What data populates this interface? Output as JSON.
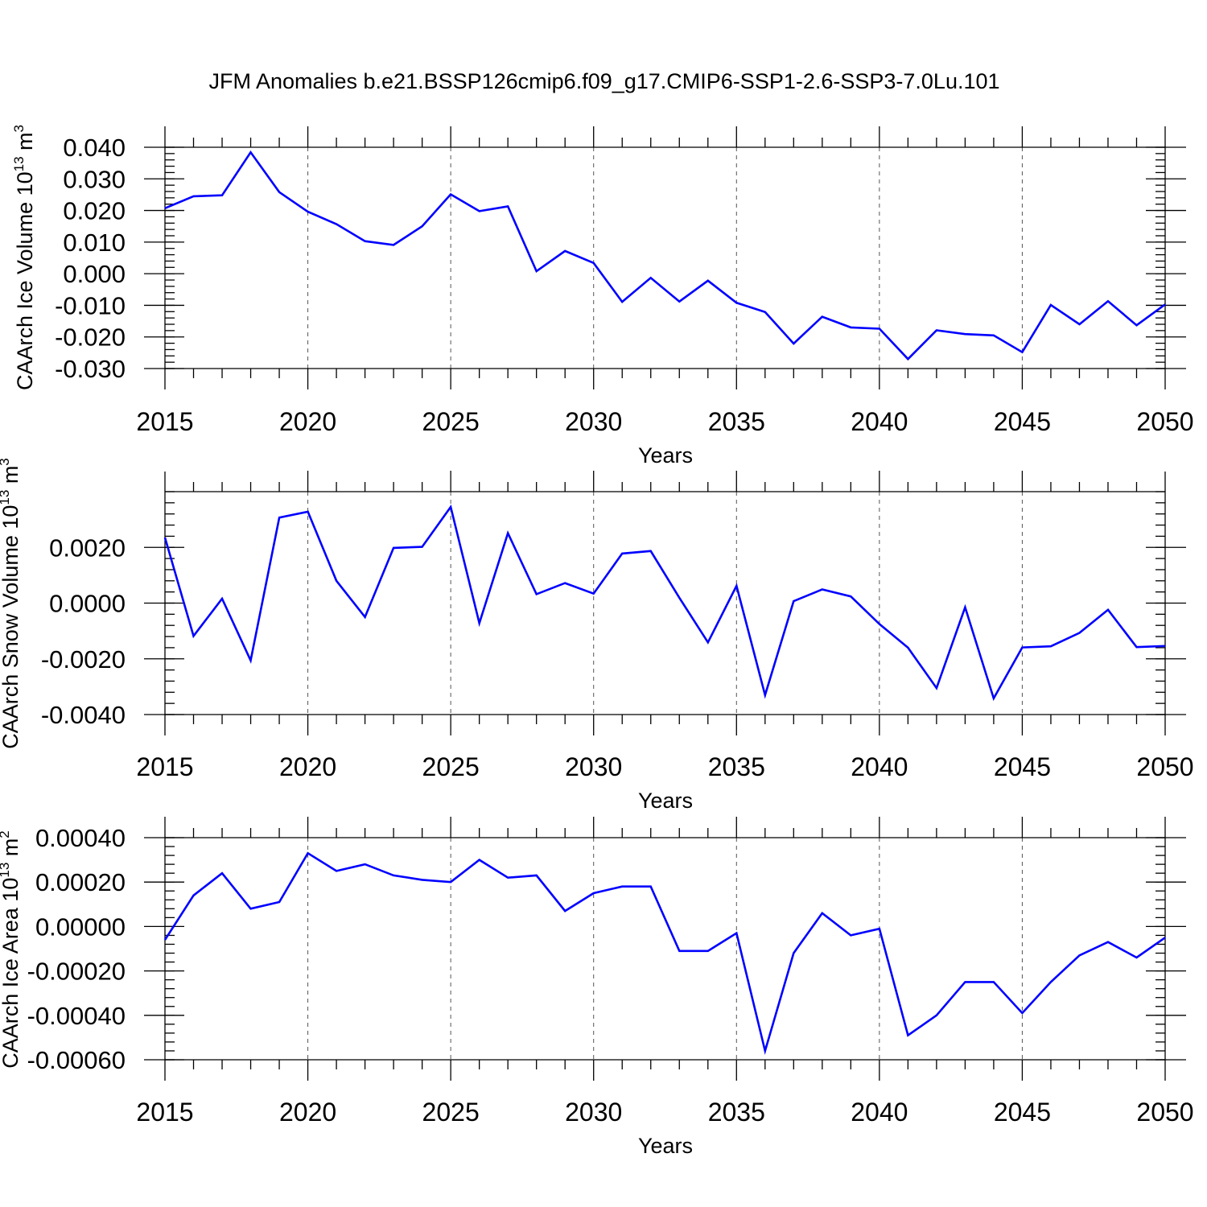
{
  "title": "JFM Anomalies b.e21.BSSP126cmip6.f09_g17.CMIP6-SSP1-2.6-SSP3-7.0Lu.101",
  "colors": {
    "line": "#0000ff",
    "axis": "#000000",
    "grid": "#555555"
  },
  "chart_data": [
    {
      "type": "line",
      "ylabel": "CAArch Ice Volume 10",
      "ylabel_sup1": "13",
      "ylabel_unit": " m",
      "ylabel_sup2": "3",
      "xlabel": "Years",
      "xlim": [
        2015,
        2050
      ],
      "ylim": [
        -0.03,
        0.04
      ],
      "x_ticks": [
        "2015",
        "2020",
        "2025",
        "2030",
        "2035",
        "2040",
        "2045",
        "2050"
      ],
      "y_ticks": [
        {
          "v": 0.04,
          "label": "0.040"
        },
        {
          "v": 0.03,
          "label": "0.030"
        },
        {
          "v": 0.02,
          "label": "0.020"
        },
        {
          "v": 0.01,
          "label": "0.010"
        },
        {
          "v": 0.0,
          "label": "0.000"
        },
        {
          "v": -0.01,
          "label": "-0.010"
        },
        {
          "v": -0.02,
          "label": "-0.020"
        },
        {
          "v": -0.03,
          "label": "-0.030"
        }
      ],
      "x": [
        2015,
        2016,
        2017,
        2018,
        2019,
        2020,
        2021,
        2022,
        2023,
        2024,
        2025,
        2026,
        2027,
        2028,
        2029,
        2030,
        2031,
        2032,
        2033,
        2034,
        2035,
        2036,
        2037,
        2038,
        2039,
        2040,
        2041,
        2042,
        2043,
        2044,
        2045,
        2046,
        2047,
        2048,
        2049,
        2050
      ],
      "values": [
        0.0207,
        0.0245,
        0.0248,
        0.0384,
        0.0258,
        0.0196,
        0.0157,
        0.0103,
        0.0091,
        0.015,
        0.0251,
        0.0198,
        0.0213,
        0.0008,
        0.0072,
        0.0034,
        -0.0089,
        -0.0013,
        -0.0088,
        -0.0022,
        -0.0092,
        -0.0121,
        -0.0221,
        -0.0136,
        -0.017,
        -0.0174,
        -0.027,
        -0.0179,
        -0.0191,
        -0.0195,
        -0.0248,
        -0.0099,
        -0.016,
        -0.0087,
        -0.0163,
        -0.0097
      ]
    },
    {
      "type": "line",
      "ylabel": "CAArch Snow Volume 10",
      "ylabel_sup1": "13",
      "ylabel_unit": " m",
      "ylabel_sup2": "3",
      "xlabel": "Years",
      "xlim": [
        2015,
        2050
      ],
      "ylim": [
        -0.004,
        0.004
      ],
      "x_ticks": [
        "2015",
        "2020",
        "2025",
        "2030",
        "2035",
        "2040",
        "2045",
        "2050"
      ],
      "y_ticks": [
        {
          "v": 0.002,
          "label": "0.0020"
        },
        {
          "v": 0.0,
          "label": "0.0000"
        },
        {
          "v": -0.002,
          "label": "-0.0020"
        },
        {
          "v": -0.004,
          "label": "-0.0040"
        }
      ],
      "x": [
        2015,
        2016,
        2017,
        2018,
        2019,
        2020,
        2021,
        2022,
        2023,
        2024,
        2025,
        2026,
        2027,
        2028,
        2029,
        2030,
        2031,
        2032,
        2033,
        2034,
        2035,
        2036,
        2037,
        2038,
        2039,
        2040,
        2041,
        2042,
        2043,
        2044,
        2045,
        2046,
        2047,
        2048,
        2049,
        2050
      ],
      "values": [
        0.00235,
        -0.00118,
        0.00016,
        -0.00206,
        0.00307,
        0.00328,
        0.0008,
        -0.0005,
        0.00198,
        0.00202,
        0.00345,
        -0.00072,
        0.00251,
        0.00032,
        0.00072,
        0.00034,
        0.00178,
        0.00187,
        0.00019,
        -0.00141,
        0.00062,
        -0.0033,
        7e-05,
        0.00049,
        0.00024,
        -0.00075,
        -0.0016,
        -0.00305,
        -0.00015,
        -0.00342,
        -0.00159,
        -0.00155,
        -0.00107,
        -0.00024,
        -0.00158,
        -0.00154
      ]
    },
    {
      "type": "line",
      "ylabel": "CAArch Ice Area 10",
      "ylabel_sup1": "13",
      "ylabel_unit": " m",
      "ylabel_sup2": "2",
      "xlabel": "Years",
      "xlim": [
        2015,
        2050
      ],
      "ylim": [
        -0.0006,
        0.0004
      ],
      "x_ticks": [
        "2015",
        "2020",
        "2025",
        "2030",
        "2035",
        "2040",
        "2045",
        "2050"
      ],
      "y_ticks": [
        {
          "v": 0.0004,
          "label": "0.00040"
        },
        {
          "v": 0.0002,
          "label": "0.00020"
        },
        {
          "v": 0.0,
          "label": "0.00000"
        },
        {
          "v": -0.0002,
          "label": "-0.00020"
        },
        {
          "v": -0.0004,
          "label": "-0.00040"
        },
        {
          "v": -0.0006,
          "label": "-0.00060"
        }
      ],
      "x": [
        2015,
        2016,
        2017,
        2018,
        2019,
        2020,
        2021,
        2022,
        2023,
        2024,
        2025,
        2026,
        2027,
        2028,
        2029,
        2030,
        2031,
        2032,
        2033,
        2034,
        2035,
        2036,
        2037,
        2038,
        2039,
        2040,
        2041,
        2042,
        2043,
        2044,
        2045,
        2046,
        2047,
        2048,
        2049,
        2050
      ],
      "values": [
        -6e-05,
        0.00014,
        0.00024,
        8e-05,
        0.00011,
        0.00033,
        0.00025,
        0.00028,
        0.00023,
        0.00021,
        0.0002,
        0.0003,
        0.00022,
        0.00023,
        7e-05,
        0.00015,
        0.00018,
        0.00018,
        -0.00011,
        -0.00011,
        -3e-05,
        -0.00056,
        -0.00012,
        6e-05,
        -4e-05,
        -1e-05,
        -0.00049,
        -0.0004,
        -0.00025,
        -0.00025,
        -0.00039,
        -0.00025,
        -0.00013,
        -7e-05,
        -0.00014,
        -5e-05
      ]
    }
  ]
}
